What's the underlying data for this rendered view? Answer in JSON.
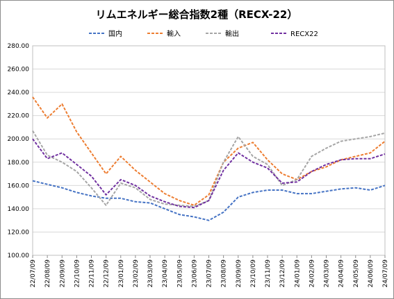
{
  "chart_data": {
    "type": "line",
    "title": "リムエネルギー総合指数2種（RECX-22）",
    "xlabel": "",
    "ylabel": "",
    "ylim": [
      100,
      280
    ],
    "y_ticks": [
      "100.00",
      "120.00",
      "140.00",
      "160.00",
      "180.00",
      "200.00",
      "220.00",
      "240.00",
      "260.00",
      "280.00"
    ],
    "x_ticks": [
      "22/07/09",
      "22/08/09",
      "22/09/09",
      "22/10/09",
      "22/11/09",
      "22/12/09",
      "23/01/09",
      "23/02/09",
      "23/03/09",
      "23/04/09",
      "23/05/09",
      "23/06/09",
      "23/07/09",
      "23/08/09",
      "23/09/09",
      "23/10/09",
      "23/11/09",
      "23/12/09",
      "24/01/09",
      "24/02/09",
      "24/03/09",
      "24/04/09",
      "24/05/09",
      "24/06/09",
      "24/07/09"
    ],
    "grid": true,
    "legend_position": "top",
    "series": [
      {
        "name": "国内",
        "color": "#4472c4",
        "values": [
          164,
          161,
          158,
          154,
          151,
          149,
          149,
          146,
          145,
          140,
          135,
          133,
          130,
          137,
          150,
          154,
          156,
          156,
          153,
          153,
          155,
          157,
          158,
          156,
          160
        ]
      },
      {
        "name": "輸入",
        "color": "#ed7d31",
        "values": [
          236,
          218,
          230,
          206,
          188,
          170,
          185,
          173,
          163,
          153,
          147,
          143,
          152,
          180,
          192,
          197,
          182,
          170,
          165,
          172,
          176,
          182,
          185,
          188,
          198
        ]
      },
      {
        "name": "輸出",
        "color": "#a5a5a5",
        "values": [
          207,
          186,
          180,
          172,
          158,
          143,
          162,
          158,
          148,
          144,
          143,
          142,
          147,
          180,
          202,
          185,
          178,
          160,
          165,
          185,
          192,
          198,
          200,
          202,
          205
        ]
      },
      {
        "name": "RECX22",
        "color": "#7030a0",
        "values": [
          200,
          183,
          188,
          178,
          168,
          152,
          165,
          160,
          151,
          146,
          142,
          141,
          147,
          173,
          188,
          180,
          175,
          162,
          163,
          172,
          178,
          182,
          183,
          183,
          187
        ]
      }
    ]
  }
}
